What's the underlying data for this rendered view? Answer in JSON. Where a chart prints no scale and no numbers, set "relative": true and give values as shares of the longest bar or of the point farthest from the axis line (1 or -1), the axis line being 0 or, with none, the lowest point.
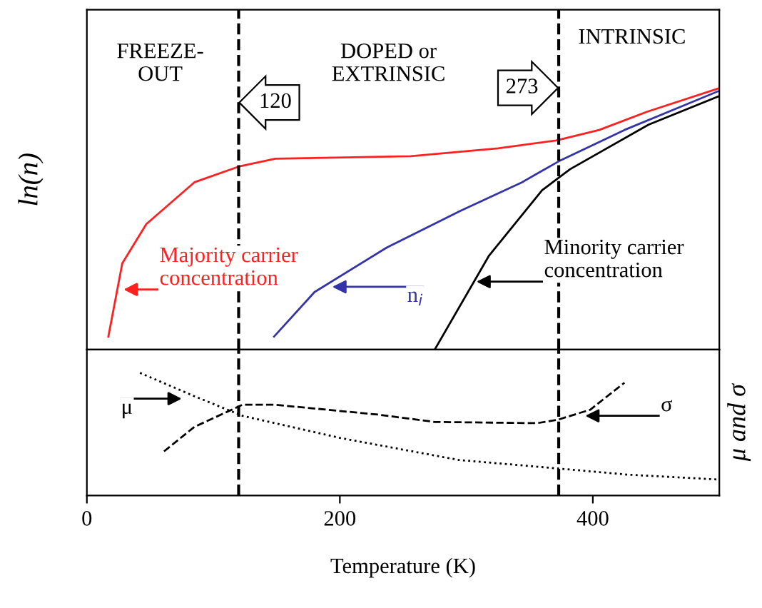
{
  "chart_data": [
    {
      "type": "line",
      "relative": true,
      "ylabel": "ln(n)",
      "xlim": [
        0,
        500
      ],
      "tick_labels": false,
      "grid": false,
      "legend": false,
      "marker": "none",
      "series": [
        {
          "color": "#ff2020",
          "x": [
            17,
            28,
            47,
            85,
            120,
            149,
            256,
            325,
            371,
            405,
            443,
            500
          ],
          "values": [
            0.05,
            0.33,
            0.48,
            0.64,
            0.7,
            0.73,
            0.74,
            0.77,
            0.8,
            0.84,
            0.91,
            1.0
          ]
        },
        {
          "color": "#3333aa",
          "x": [
            148,
            180,
            237,
            295,
            344,
            373,
            425,
            500
          ],
          "values": [
            0.05,
            0.22,
            0.39,
            0.53,
            0.64,
            0.72,
            0.84,
            0.99
          ]
        },
        {
          "color": "#000000",
          "x": [
            275,
            318,
            360,
            382,
            444,
            500
          ],
          "values": [
            0,
            0.36,
            0.61,
            0.69,
            0.86,
            0.97
          ]
        }
      ],
      "ref_lines": [
        {
          "axis": "x",
          "value": 120,
          "line_style": "dashed",
          "color": "#000000"
        },
        {
          "axis": "x",
          "value": 373,
          "line_style": "dashed",
          "color": "#000000"
        }
      ],
      "annotations": [
        "FREEZE-\nOUT",
        "DOPED or\nEXTRINSIC",
        "INTRINSIC",
        "120",
        "273",
        {
          "text": "Majority carrier\nconcentration",
          "x": 29,
          "y": 0.23
        },
        {
          "text": "n$_{i}$",
          "x": 194,
          "y": 0.24
        },
        {
          "text": "Minority carrier\nconcentration",
          "x": 308,
          "y": 0.26
        }
      ]
    },
    {
      "type": "line",
      "relative": true,
      "ylabel": "μ and σ",
      "xlabel": "Temperature (K)",
      "xlim": [
        0,
        500
      ],
      "xticks": [
        0,
        200,
        400
      ],
      "tick_labels": "x",
      "grid": false,
      "legend": false,
      "marker": "none",
      "series": [
        {
          "color": "#000000",
          "line_style": "dotted",
          "x": [
            42,
            85,
            123,
            200,
            294,
            373,
            428,
            500
          ],
          "values": [
            1,
            0.81,
            0.65,
            0.47,
            0.29,
            0.22,
            0.17,
            0.13
          ]
        },
        {
          "color": "#000000",
          "line_style": "dashed",
          "x": [
            61,
            85,
            123,
            149,
            230,
            275,
            356,
            373,
            398,
            425
          ],
          "values": [
            0.36,
            0.56,
            0.74,
            0.74,
            0.66,
            0.6,
            0.59,
            0.62,
            0.7,
            0.92
          ]
        }
      ],
      "ref_lines": [
        {
          "axis": "x",
          "value": 120,
          "line_style": "dashed",
          "color": "#000000"
        },
        {
          "axis": "x",
          "value": 373,
          "line_style": "dashed",
          "color": "#000000"
        }
      ],
      "annotations": [
        {
          "text": "μ",
          "x": 75,
          "y": 0.79
        },
        {
          "text": "σ",
          "x": 394,
          "y": 0.65
        }
      ]
    }
  ]
}
